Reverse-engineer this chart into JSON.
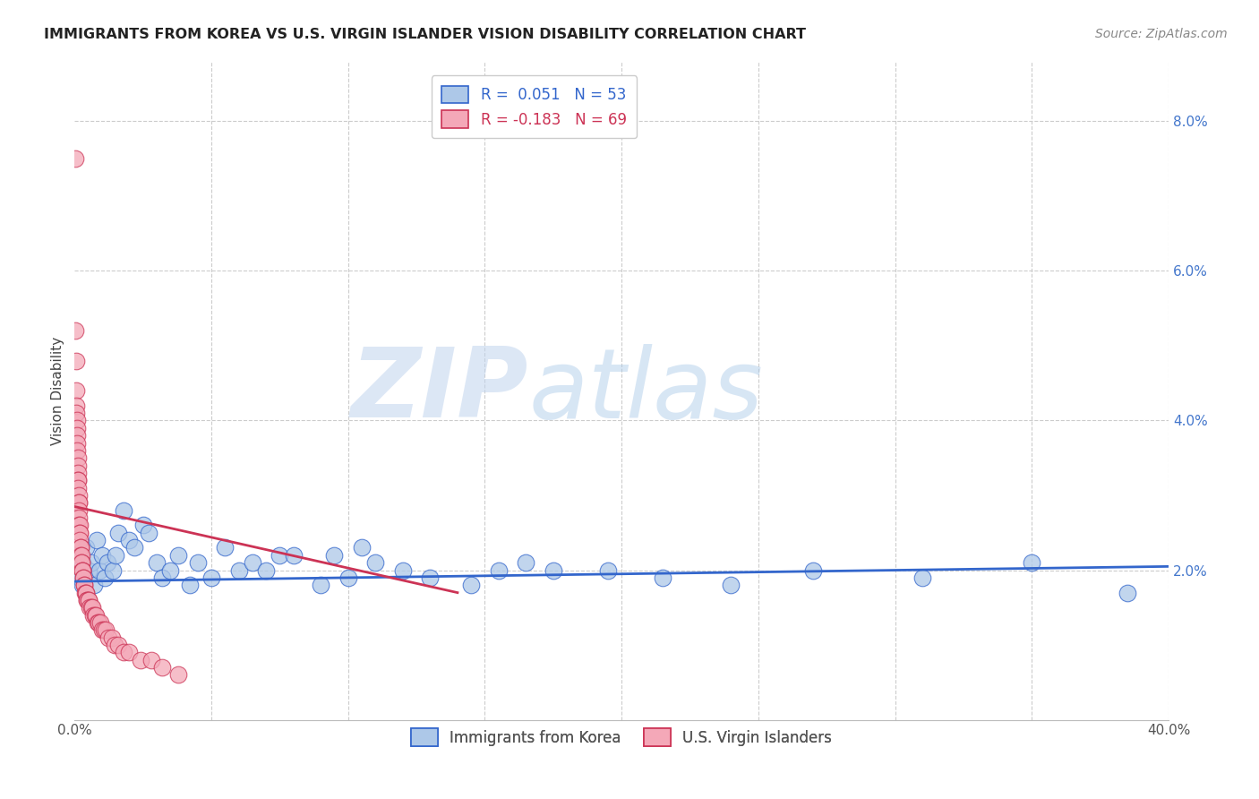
{
  "title": "IMMIGRANTS FROM KOREA VS U.S. VIRGIN ISLANDER VISION DISABILITY CORRELATION CHART",
  "source": "Source: ZipAtlas.com",
  "ylabel": "Vision Disability",
  "watermark_zip": "ZIP",
  "watermark_atlas": "atlas",
  "xlim": [
    0.0,
    0.4
  ],
  "ylim": [
    0.0,
    0.088
  ],
  "yticks": [
    0.0,
    0.02,
    0.04,
    0.06,
    0.08
  ],
  "ytick_labels": [
    "",
    "2.0%",
    "4.0%",
    "6.0%",
    "8.0%"
  ],
  "xticks": [
    0.0,
    0.05,
    0.1,
    0.15,
    0.2,
    0.25,
    0.3,
    0.35,
    0.4
  ],
  "xtick_labels": [
    "0.0%",
    "",
    "",
    "",
    "",
    "",
    "",
    "",
    "40.0%"
  ],
  "legend1_label": "Immigrants from Korea",
  "legend2_label": "U.S. Virgin Islanders",
  "R_korea": 0.051,
  "N_korea": 53,
  "R_virgin": -0.183,
  "N_virgin": 69,
  "color_korea": "#adc8e8",
  "color_virgin": "#f4a8b8",
  "line_color_korea": "#3366cc",
  "line_color_virgin": "#cc3355",
  "background_color": "#ffffff",
  "grid_color": "#cccccc",
  "korea_trend_x0": 0.0,
  "korea_trend_y0": 0.0185,
  "korea_trend_x1": 0.4,
  "korea_trend_y1": 0.0205,
  "virgin_trend_x0": 0.0,
  "virgin_trend_y0": 0.0285,
  "virgin_trend_x1": 0.14,
  "virgin_trend_y1": 0.017,
  "korea_x": [
    0.001,
    0.001,
    0.002,
    0.003,
    0.003,
    0.004,
    0.005,
    0.006,
    0.007,
    0.008,
    0.009,
    0.01,
    0.011,
    0.012,
    0.014,
    0.015,
    0.016,
    0.018,
    0.02,
    0.022,
    0.025,
    0.027,
    0.03,
    0.032,
    0.035,
    0.038,
    0.042,
    0.045,
    0.05,
    0.055,
    0.06,
    0.065,
    0.07,
    0.075,
    0.08,
    0.09,
    0.095,
    0.1,
    0.105,
    0.11,
    0.12,
    0.13,
    0.145,
    0.155,
    0.165,
    0.175,
    0.195,
    0.215,
    0.24,
    0.27,
    0.31,
    0.35,
    0.385
  ],
  "korea_y": [
    0.02,
    0.022,
    0.019,
    0.021,
    0.018,
    0.023,
    0.02,
    0.021,
    0.018,
    0.024,
    0.02,
    0.022,
    0.019,
    0.021,
    0.02,
    0.022,
    0.025,
    0.028,
    0.024,
    0.023,
    0.026,
    0.025,
    0.021,
    0.019,
    0.02,
    0.022,
    0.018,
    0.021,
    0.019,
    0.023,
    0.02,
    0.021,
    0.02,
    0.022,
    0.022,
    0.018,
    0.022,
    0.019,
    0.023,
    0.021,
    0.02,
    0.019,
    0.018,
    0.02,
    0.021,
    0.02,
    0.02,
    0.019,
    0.018,
    0.02,
    0.019,
    0.021,
    0.017
  ],
  "virgin_x": [
    0.0003,
    0.0003,
    0.0005,
    0.0005,
    0.0006,
    0.0007,
    0.0008,
    0.0008,
    0.0009,
    0.001,
    0.001,
    0.0011,
    0.0011,
    0.0012,
    0.0012,
    0.0013,
    0.0013,
    0.0014,
    0.0015,
    0.0015,
    0.0016,
    0.0017,
    0.0017,
    0.0018,
    0.0019,
    0.002,
    0.002,
    0.0021,
    0.0022,
    0.0023,
    0.0024,
    0.0025,
    0.0026,
    0.0027,
    0.0028,
    0.003,
    0.0031,
    0.0032,
    0.0034,
    0.0036,
    0.0038,
    0.004,
    0.0042,
    0.0044,
    0.0046,
    0.005,
    0.0053,
    0.0056,
    0.006,
    0.0064,
    0.0068,
    0.0073,
    0.0078,
    0.0083,
    0.0088,
    0.0095,
    0.01,
    0.0108,
    0.0115,
    0.0125,
    0.0135,
    0.0145,
    0.016,
    0.018,
    0.02,
    0.024,
    0.028,
    0.032,
    0.038
  ],
  "virgin_y": [
    0.075,
    0.052,
    0.048,
    0.044,
    0.042,
    0.041,
    0.04,
    0.039,
    0.038,
    0.037,
    0.036,
    0.035,
    0.034,
    0.033,
    0.032,
    0.032,
    0.031,
    0.03,
    0.029,
    0.029,
    0.028,
    0.027,
    0.026,
    0.026,
    0.025,
    0.025,
    0.024,
    0.023,
    0.023,
    0.022,
    0.022,
    0.021,
    0.021,
    0.02,
    0.02,
    0.02,
    0.019,
    0.019,
    0.018,
    0.018,
    0.017,
    0.017,
    0.017,
    0.016,
    0.016,
    0.016,
    0.016,
    0.015,
    0.015,
    0.015,
    0.014,
    0.014,
    0.014,
    0.013,
    0.013,
    0.013,
    0.012,
    0.012,
    0.012,
    0.011,
    0.011,
    0.01,
    0.01,
    0.009,
    0.009,
    0.008,
    0.008,
    0.007,
    0.006
  ]
}
